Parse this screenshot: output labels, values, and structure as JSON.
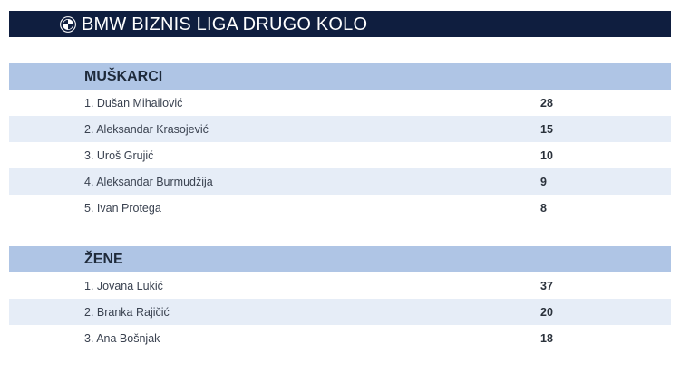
{
  "header": {
    "title": "BMW BIZNIS LIGA DRUGO KOLO",
    "logo_icon": "bmw-roundel-icon"
  },
  "colors": {
    "title_bar": "#0f1e3f",
    "section_header": "#afc5e5",
    "row_alt": "#e6edf7"
  },
  "men": {
    "heading": "MUŠKARCI",
    "rows": [
      {
        "name": "1. Dušan Mihailović",
        "score": "28"
      },
      {
        "name": "2. Aleksandar Krasojević",
        "score": "15"
      },
      {
        "name": "3. Uroš Grujić",
        "score": "10"
      },
      {
        "name": "4. Aleksandar Burmudžija",
        "score": "9"
      },
      {
        "name": "5. Ivan Protega",
        "score": "8"
      }
    ]
  },
  "women": {
    "heading": "ŽENE",
    "rows": [
      {
        "name": "1. Jovana Lukić",
        "score": "37"
      },
      {
        "name": "2. Branka Rajičić",
        "score": "20"
      },
      {
        "name": "3. Ana Bošnjak",
        "score": "18"
      }
    ]
  }
}
